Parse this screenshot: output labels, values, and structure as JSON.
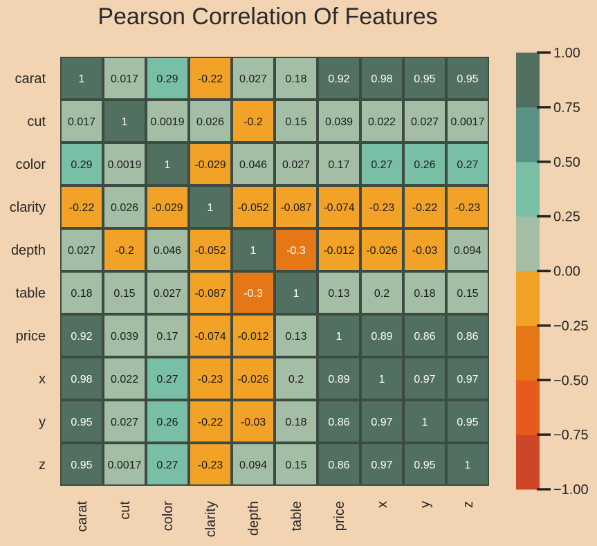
{
  "chart_data": {
    "type": "heatmap",
    "title": "Pearson Correlation Of Features",
    "x_labels": [
      "carat",
      "cut",
      "color",
      "clarity",
      "depth",
      "table",
      "price",
      "x",
      "y",
      "z"
    ],
    "y_labels": [
      "carat",
      "cut",
      "color",
      "clarity",
      "depth",
      "table",
      "price",
      "x",
      "y",
      "z"
    ],
    "values": [
      [
        1,
        0.017,
        0.29,
        -0.22,
        0.027,
        0.18,
        0.92,
        0.98,
        0.95,
        0.95
      ],
      [
        0.017,
        1,
        0.0019,
        0.026,
        -0.2,
        0.15,
        0.039,
        0.022,
        0.027,
        0.0017
      ],
      [
        0.29,
        0.0019,
        1,
        -0.029,
        0.046,
        0.027,
        0.17,
        0.27,
        0.26,
        0.27
      ],
      [
        -0.22,
        0.026,
        -0.029,
        1,
        -0.052,
        -0.087,
        -0.074,
        -0.23,
        -0.22,
        -0.23
      ],
      [
        0.027,
        -0.2,
        0.046,
        -0.052,
        1,
        -0.3,
        -0.012,
        -0.026,
        -0.03,
        0.094
      ],
      [
        0.18,
        0.15,
        0.027,
        -0.087,
        -0.3,
        1,
        0.13,
        0.2,
        0.18,
        0.15
      ],
      [
        0.92,
        0.039,
        0.17,
        -0.074,
        -0.012,
        0.13,
        1,
        0.89,
        0.86,
        0.86
      ],
      [
        0.98,
        0.022,
        0.27,
        -0.23,
        -0.026,
        0.2,
        0.89,
        1,
        0.97,
        0.97
      ],
      [
        0.95,
        0.027,
        0.26,
        -0.22,
        -0.03,
        0.18,
        0.86,
        0.97,
        1,
        0.95
      ],
      [
        0.95,
        0.0017,
        0.27,
        -0.23,
        0.094,
        0.15,
        0.86,
        0.97,
        0.95,
        1
      ]
    ],
    "labels": [
      [
        "1",
        "0.017",
        "0.29",
        "-0.22",
        "0.027",
        "0.18",
        "0.92",
        "0.98",
        "0.95",
        "0.95"
      ],
      [
        "0.017",
        "1",
        "0.0019",
        "0.026",
        "-0.2",
        "0.15",
        "0.039",
        "0.022",
        "0.027",
        "0.0017"
      ],
      [
        "0.29",
        "0.0019",
        "1",
        "-0.029",
        "0.046",
        "0.027",
        "0.17",
        "0.27",
        "0.26",
        "0.27"
      ],
      [
        "-0.22",
        "0.026",
        "-0.029",
        "1",
        "-0.052",
        "-0.087",
        "-0.074",
        "-0.23",
        "-0.22",
        "-0.23"
      ],
      [
        "0.027",
        "-0.2",
        "0.046",
        "-0.052",
        "1",
        "-0.3",
        "-0.012",
        "-0.026",
        "-0.03",
        "0.094"
      ],
      [
        "0.18",
        "0.15",
        "0.027",
        "-0.087",
        "-0.3",
        "1",
        "0.13",
        "0.2",
        "0.18",
        "0.15"
      ],
      [
        "0.92",
        "0.039",
        "0.17",
        "-0.074",
        "-0.012",
        "0.13",
        "1",
        "0.89",
        "0.86",
        "0.86"
      ],
      [
        "0.98",
        "0.022",
        "0.27",
        "-0.23",
        "-0.026",
        "0.2",
        "0.89",
        "1",
        "0.97",
        "0.97"
      ],
      [
        "0.95",
        "0.027",
        "0.26",
        "-0.22",
        "-0.03",
        "0.18",
        "0.86",
        "0.97",
        "1",
        "0.95"
      ],
      [
        "0.95",
        "0.0017",
        "0.27",
        "-0.23",
        "0.094",
        "0.15",
        "0.86",
        "0.97",
        "0.95",
        "1"
      ]
    ],
    "colorbar": {
      "range": [
        -1,
        1
      ],
      "ticks": [
        "−1.00",
        "−0.75",
        "−0.50",
        "−0.25",
        "0.00",
        "0.25",
        "0.50",
        "0.75",
        "1.00"
      ],
      "colors": [
        "#CC4628",
        "#E85A1B",
        "#E67717",
        "#F2A227",
        "#A3BEA5",
        "#78BFA6",
        "#5A9384",
        "#52705F"
      ]
    },
    "colors": {
      "background": "#F3D4B2",
      "cell_border": "#3E4B42",
      "text_dark": "#1c1c1c",
      "text_light": "#ffffff"
    }
  }
}
